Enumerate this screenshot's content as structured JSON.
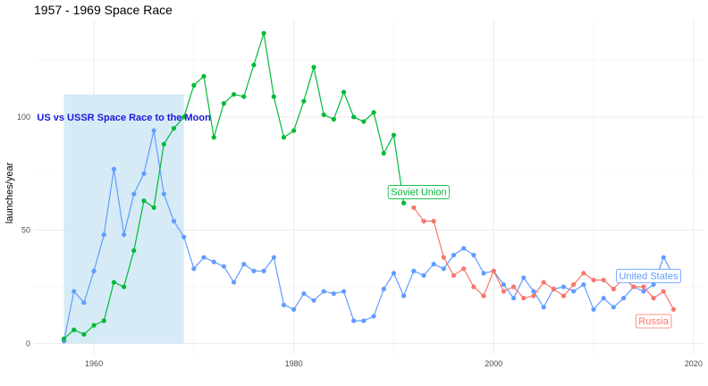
{
  "chart_data": {
    "type": "line",
    "title": "1957 - 1969 Space Race",
    "xlabel": "",
    "ylabel": "launches/year",
    "xlim": [
      1954,
      2021
    ],
    "ylim": [
      -5,
      143
    ],
    "x_ticks": [
      1960,
      1980,
      2000,
      2020
    ],
    "y_ticks": [
      0,
      50,
      100
    ],
    "grid": true,
    "legend": "none",
    "highlight_region": {
      "x": [
        1957,
        1969
      ],
      "y": [
        0,
        110
      ],
      "color": "#cce6f4"
    },
    "annotation": {
      "text": "US vs USSR Space Race to the Moon",
      "x": 1963,
      "y": 100,
      "color": "#1a1adb"
    },
    "series": [
      {
        "name": "United States",
        "color": "#619CFF",
        "label_pos": {
          "x": 2015.5,
          "y": 30
        },
        "x": [
          1957,
          1958,
          1959,
          1960,
          1961,
          1962,
          1963,
          1964,
          1965,
          1966,
          1967,
          1968,
          1969,
          1970,
          1971,
          1972,
          1973,
          1974,
          1975,
          1976,
          1977,
          1978,
          1979,
          1980,
          1981,
          1982,
          1983,
          1984,
          1985,
          1986,
          1987,
          1988,
          1989,
          1990,
          1991,
          1992,
          1993,
          1994,
          1995,
          1996,
          1997,
          1998,
          1999,
          2000,
          2001,
          2002,
          2003,
          2004,
          2005,
          2006,
          2007,
          2008,
          2009,
          2010,
          2011,
          2012,
          2013,
          2014,
          2015,
          2016,
          2017,
          2018
        ],
        "y": [
          1,
          23,
          18,
          32,
          48,
          77,
          48,
          66,
          75,
          94,
          66,
          54,
          47,
          33,
          38,
          36,
          34,
          27,
          35,
          32,
          32,
          38,
          17,
          15,
          22,
          19,
          23,
          22,
          23,
          10,
          10,
          12,
          24,
          31,
          21,
          32,
          30,
          35,
          33,
          39,
          42,
          39,
          31,
          32,
          26,
          20,
          29,
          23,
          16,
          24,
          25,
          23,
          26,
          15,
          20,
          16,
          20,
          25,
          23,
          26,
          38,
          30
        ]
      },
      {
        "name": "Soviet Union",
        "color": "#00BA38",
        "label_pos": {
          "x": 1992.5,
          "y": 67
        },
        "x": [
          1957,
          1958,
          1959,
          1960,
          1961,
          1962,
          1963,
          1964,
          1965,
          1966,
          1967,
          1968,
          1969,
          1970,
          1971,
          1972,
          1973,
          1974,
          1975,
          1976,
          1977,
          1978,
          1979,
          1980,
          1981,
          1982,
          1983,
          1984,
          1985,
          1986,
          1987,
          1988,
          1989,
          1990,
          1991
        ],
        "y": [
          2,
          6,
          4,
          8,
          10,
          27,
          25,
          41,
          63,
          60,
          88,
          95,
          100,
          114,
          118,
          91,
          106,
          110,
          109,
          123,
          137,
          109,
          91,
          94,
          107,
          122,
          101,
          99,
          111,
          100,
          98,
          102,
          84,
          92,
          62
        ]
      },
      {
        "name": "Russia",
        "color": "#F8766D",
        "label_pos": {
          "x": 2016,
          "y": 10
        },
        "x": [
          1992,
          1993,
          1994,
          1995,
          1996,
          1997,
          1998,
          1999,
          2000,
          2001,
          2002,
          2003,
          2004,
          2005,
          2006,
          2007,
          2008,
          2009,
          2010,
          2011,
          2012,
          2013,
          2014,
          2015,
          2016,
          2017,
          2018
        ],
        "y": [
          60,
          54,
          54,
          38,
          30,
          33,
          25,
          21,
          32,
          23,
          25,
          20,
          21,
          27,
          24,
          21,
          26,
          31,
          28,
          28,
          24,
          29,
          25,
          25,
          20,
          23,
          15
        ]
      }
    ]
  }
}
